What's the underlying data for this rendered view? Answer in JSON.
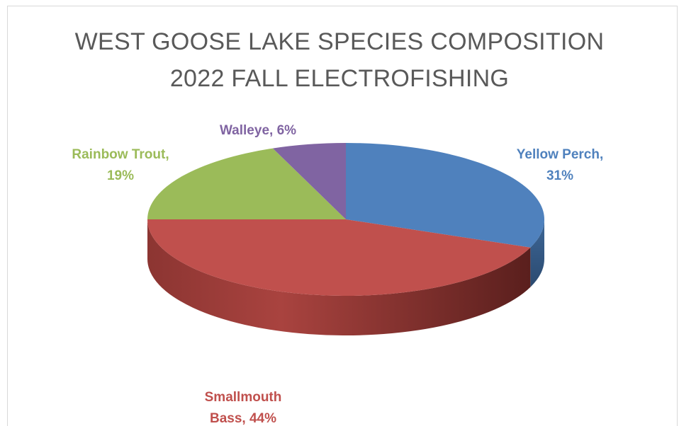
{
  "chart_data": {
    "type": "pie",
    "title": "WEST GOOSE LAKE SPECIES COMPOSITION",
    "subtitle": "2022 FALL ELECTROFISHING",
    "categories": [
      "Yellow Perch",
      "Smallmouth Bass",
      "Rainbow Trout",
      "Walleye"
    ],
    "values": [
      31,
      44,
      19,
      6
    ],
    "unit": "%",
    "legend": "none",
    "style": "3d",
    "colors": [
      "#4f81bd",
      "#c0504d",
      "#9bbb59",
      "#8064a2"
    ],
    "slices": [
      {
        "name": "Yellow Perch",
        "value": 31,
        "label_lines": [
          "Yellow Perch,",
          "31%"
        ]
      },
      {
        "name": "Smallmouth Bass",
        "value": 44,
        "label_lines": [
          "Smallmouth",
          "Bass, 44%"
        ]
      },
      {
        "name": "Rainbow Trout",
        "value": 19,
        "label_lines": [
          "Rainbow Trout,",
          "19%"
        ]
      },
      {
        "name": "Walleye",
        "value": 6,
        "label_lines": [
          "Walleye, 6%"
        ]
      }
    ]
  }
}
